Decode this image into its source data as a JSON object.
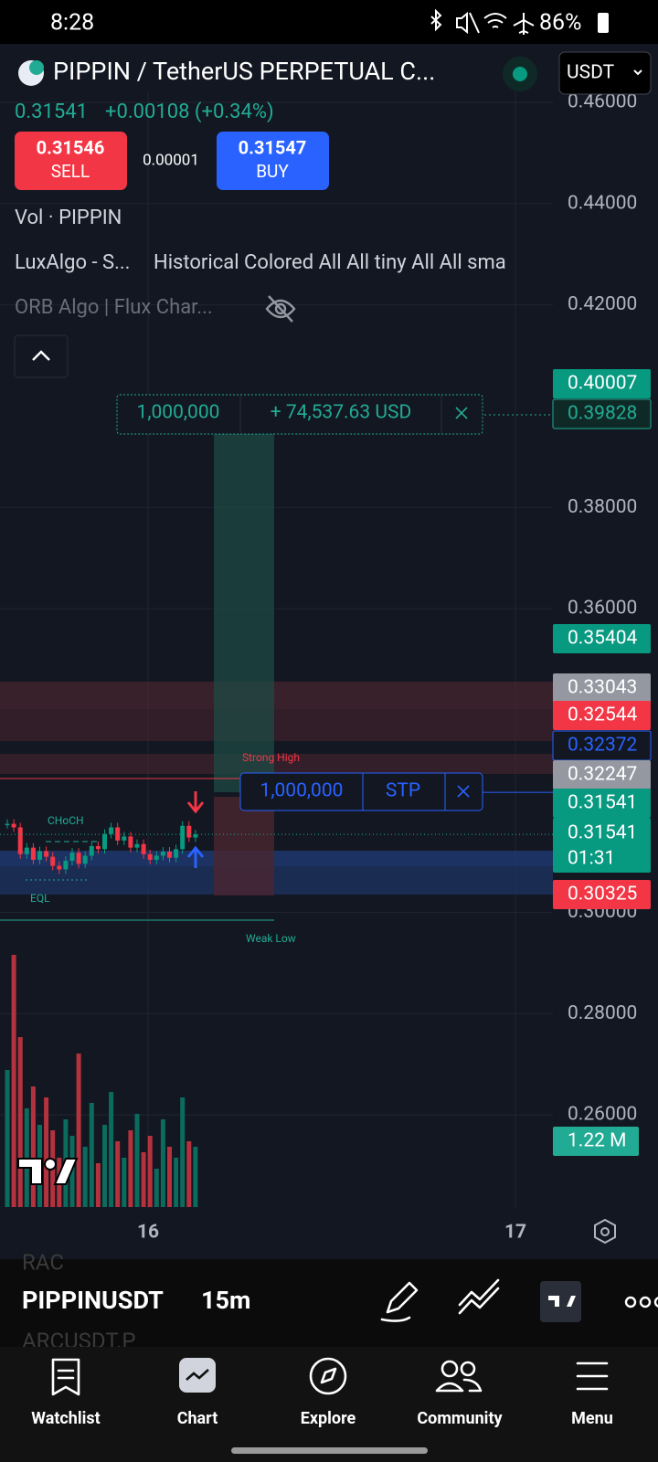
{
  "status_bar": {
    "time": "8:28",
    "battery": "86%"
  },
  "header": {
    "symbol": "PIPPIN / TetherUS PERPETUAL C...",
    "currency": "USDT",
    "price": "0.31541",
    "change": "+0.00108 (+0.34%)"
  },
  "trade": {
    "sell_price": "0.31546",
    "sell_label": "SELL",
    "spread": "0.00001",
    "buy_price": "0.31547",
    "buy_label": "BUY"
  },
  "indicators": [
    "Vol · PIPPIN",
    "LuxAlgo - S...",
    "Historical Colored All All tiny All All sma",
    "ORB Algo | Flux Char..."
  ],
  "position": {
    "quantity": "1,000,000",
    "pnl": "+ 74,537.63 USD"
  },
  "order": {
    "quantity": "1,000,000",
    "type": "STP"
  },
  "annotations": [
    "Strong High",
    "CHoCH",
    "EQL",
    "Weak Low"
  ],
  "price_axis": {
    "ylim": [
      0.2418,
      0.4712
    ],
    "ticks": [
      {
        "value": 0.46,
        "label": "0.46000"
      },
      {
        "value": 0.44,
        "label": "0.44000"
      },
      {
        "value": 0.42,
        "label": "0.42000"
      },
      {
        "value": 0.38,
        "label": "0.38000"
      },
      {
        "value": 0.36,
        "label": "0.36000"
      },
      {
        "value": 0.3,
        "label": "0.30000"
      },
      {
        "value": 0.28,
        "label": "0.28000"
      },
      {
        "value": 0.26,
        "label": "0.26000"
      }
    ]
  },
  "price_levels": [
    {
      "value": 0.40007,
      "fill": "#089981",
      "text_color": "#ffffff"
    },
    {
      "value": 0.39828,
      "fill": "#0f2a26",
      "text_color": "#22ab94"
    },
    {
      "value": 0.35404,
      "fill": "#089981",
      "text_color": "#ffffff"
    },
    {
      "value": 0.33043,
      "fill": "#9598a1",
      "text_color": "#ffffff"
    },
    {
      "value": 0.32544,
      "fill": "#f23645",
      "text_color": "#ffffff"
    },
    {
      "value": 0.32372,
      "fill": "#131722",
      "text_color": "#2962ff"
    },
    {
      "value": 0.32247,
      "fill": "#9598a1",
      "text_color": "#ffffff"
    },
    {
      "value": 0.31541,
      "fill": "#089981",
      "text_color": "#ffffff"
    },
    {
      "value": 0.31541,
      "fill": "#089981",
      "text_color": "#ffffff",
      "countdown": "01:31"
    },
    {
      "value": 0.30325,
      "fill": "#f23645",
      "text_color": "#ffffff"
    }
  ],
  "volume_label": "1.22 M",
  "candles": [
    0.3175,
    0.3168,
    0.3115,
    0.3128,
    0.3104,
    0.3121,
    0.311,
    0.3092,
    0.3085,
    0.3102,
    0.3118,
    0.3096,
    0.3112,
    0.3131,
    0.3125,
    0.3155,
    0.3168,
    0.3142,
    0.315,
    0.3128,
    0.3135,
    0.3115,
    0.3104,
    0.3112,
    0.312,
    0.3108,
    0.3125,
    0.3171,
    0.3148,
    0.3154
  ],
  "volumes": [
    2.5,
    4.6,
    3.1,
    1.8,
    2.2,
    1.5,
    2.0,
    1.4,
    0.9,
    1.6,
    1.3,
    2.8,
    1.1,
    1.9,
    0.8,
    1.5,
    2.1,
    1.2,
    0.9,
    1.4,
    1.7,
    1.0,
    1.3,
    0.7,
    1.6,
    1.1,
    0.9,
    2.0,
    1.2,
    1.1
  ],
  "time_axis": [
    "16",
    "17"
  ],
  "toolbar": {
    "symbol": "PIPPINUSDT",
    "interval": "15m",
    "ghost_above": "RAC",
    "ghost_below": "ARCUSDT.P"
  },
  "nav": [
    "Watchlist",
    "Chart",
    "Explore",
    "Community",
    "Menu"
  ]
}
